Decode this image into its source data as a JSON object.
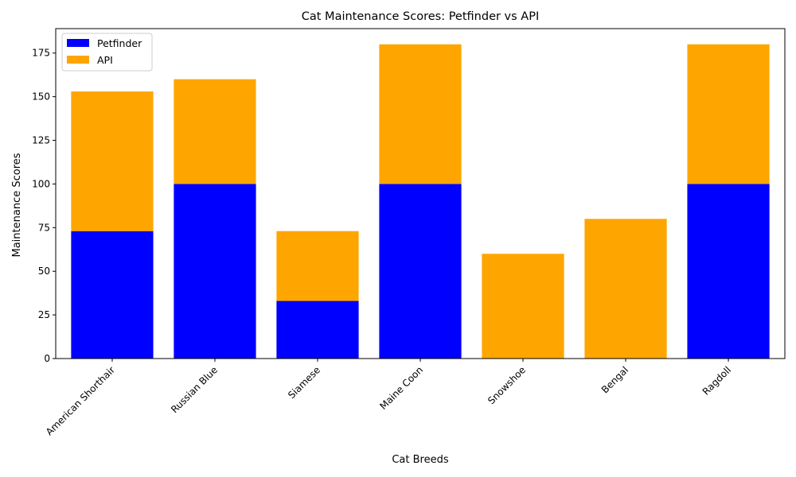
{
  "chart_data": {
    "type": "bar",
    "stacked": true,
    "title": "Cat Maintenance Scores: Petfinder vs API",
    "xlabel": "Cat Breeds",
    "ylabel": "Maintenance Scores",
    "categories": [
      "American Shorthair",
      "Russian Blue",
      "Siamese",
      "Maine Coon",
      "Snowshoe",
      "Bengal",
      "Ragdoll"
    ],
    "series": [
      {
        "name": "Petfinder",
        "color": "#0000ff",
        "values": [
          73,
          100,
          33,
          100,
          0,
          0,
          100
        ]
      },
      {
        "name": "API",
        "color": "#ffa500",
        "values": [
          80,
          60,
          40,
          80,
          60,
          80,
          80
        ]
      }
    ],
    "ylim": [
      0,
      189
    ],
    "yticks": [
      0,
      25,
      50,
      75,
      100,
      125,
      150,
      175
    ],
    "grid": false,
    "legend": "top-left"
  }
}
